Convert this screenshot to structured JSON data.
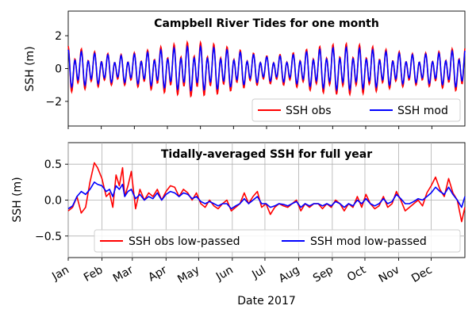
{
  "chart_data": [
    {
      "type": "line",
      "title": "Campbell River Tides for one month",
      "ylabel": "SSH (m)",
      "ylim": [
        -3.5,
        3.5
      ],
      "yticks": [
        -2,
        0,
        2
      ],
      "grid": false,
      "legend": "lower-right",
      "x_tide_period_days": 0.5175,
      "series": [
        {
          "name": "SSH obs",
          "color": "#ff0000",
          "amplitude_envelope": [
            1.35,
            1.05,
            0.85,
            1.05,
            1.4,
            1.6,
            1.45,
            1.1,
            0.8,
            0.95,
            1.3,
            1.5,
            1.4,
            1.1,
            0.9,
            1.05,
            1.35
          ],
          "mean_offset": -0.1
        },
        {
          "name": "SSH mod",
          "color": "#0000ff",
          "amplitude_envelope": [
            1.1,
            0.9,
            0.75,
            0.9,
            1.15,
            1.3,
            1.2,
            0.95,
            0.7,
            0.8,
            1.1,
            1.25,
            1.15,
            0.95,
            0.8,
            0.9,
            1.15
          ],
          "mean_offset": -0.05
        }
      ]
    },
    {
      "type": "line",
      "title": "Tidally-averaged SSH for full year",
      "ylabel": "SSH (m)",
      "xlabel": "Date 2017",
      "ylim": [
        -0.8,
        0.8
      ],
      "yticks": [
        -0.5,
        0.0,
        0.5
      ],
      "ytick_labels": [
        "−0.5",
        "0.0",
        "0.5"
      ],
      "x_categories": [
        "Jan",
        "Feb",
        "Mar",
        "Apr",
        "May",
        "Jun",
        "Jul",
        "Aug",
        "Sep",
        "Oct",
        "Nov",
        "Dec"
      ],
      "xlim_days": [
        0,
        365
      ],
      "grid": true,
      "legend": "lower-right",
      "series": [
        {
          "name": "SSH obs low-passed",
          "color": "#ff0000",
          "x_days": [
            0,
            4,
            8,
            12,
            16,
            20,
            24,
            27,
            31,
            35,
            38,
            41,
            44,
            47,
            50,
            52,
            55,
            58,
            62,
            66,
            70,
            74,
            78,
            82,
            86,
            90,
            94,
            98,
            102,
            106,
            110,
            114,
            118,
            122,
            126,
            130,
            134,
            138,
            142,
            146,
            150,
            154,
            158,
            162,
            166,
            170,
            174,
            178,
            182,
            186,
            190,
            194,
            198,
            202,
            206,
            210,
            214,
            218,
            222,
            226,
            230,
            234,
            238,
            242,
            246,
            250,
            254,
            258,
            262,
            266,
            270,
            274,
            278,
            282,
            286,
            290,
            294,
            298,
            302,
            306,
            310,
            314,
            318,
            322,
            326,
            330,
            334,
            338,
            342,
            346,
            350,
            354,
            358,
            362,
            365
          ],
          "values": [
            -0.15,
            -0.1,
            0.05,
            -0.18,
            -0.1,
            0.25,
            0.52,
            0.45,
            0.3,
            0.05,
            0.1,
            -0.1,
            0.35,
            0.2,
            0.45,
            0.05,
            0.2,
            0.4,
            -0.12,
            0.15,
            0.0,
            0.1,
            0.05,
            0.15,
            0.0,
            0.12,
            0.2,
            0.18,
            0.05,
            0.15,
            0.1,
            0.0,
            0.1,
            -0.05,
            -0.1,
            0.0,
            -0.08,
            -0.12,
            -0.05,
            0.0,
            -0.15,
            -0.1,
            -0.05,
            0.1,
            -0.05,
            0.05,
            0.12,
            -0.1,
            -0.05,
            -0.2,
            -0.1,
            -0.05,
            -0.08,
            -0.1,
            -0.05,
            0.0,
            -0.15,
            -0.05,
            -0.1,
            -0.05,
            -0.05,
            -0.12,
            -0.05,
            -0.1,
            0.0,
            -0.05,
            -0.15,
            -0.05,
            -0.1,
            0.05,
            -0.1,
            0.08,
            -0.05,
            -0.12,
            -0.08,
            0.05,
            -0.1,
            -0.05,
            0.12,
            0.0,
            -0.15,
            -0.1,
            -0.05,
            0.0,
            -0.08,
            0.1,
            0.2,
            0.32,
            0.15,
            0.05,
            0.3,
            0.1,
            0.0,
            -0.3,
            -0.1
          ]
        },
        {
          "name": "SSH mod low-passed",
          "color": "#0000ff",
          "x_days": [
            0,
            4,
            8,
            12,
            16,
            20,
            24,
            27,
            31,
            35,
            38,
            41,
            44,
            47,
            50,
            52,
            55,
            58,
            62,
            66,
            70,
            74,
            78,
            82,
            86,
            90,
            94,
            98,
            102,
            106,
            110,
            114,
            118,
            122,
            126,
            130,
            134,
            138,
            142,
            146,
            150,
            154,
            158,
            162,
            166,
            170,
            174,
            178,
            182,
            186,
            190,
            194,
            198,
            202,
            206,
            210,
            214,
            218,
            222,
            226,
            230,
            234,
            238,
            242,
            246,
            250,
            254,
            258,
            262,
            266,
            270,
            274,
            278,
            282,
            286,
            290,
            294,
            298,
            302,
            306,
            310,
            314,
            318,
            322,
            326,
            330,
            334,
            338,
            342,
            346,
            350,
            354,
            358,
            362,
            365
          ],
          "values": [
            -0.12,
            -0.08,
            0.05,
            0.12,
            0.08,
            0.15,
            0.25,
            0.22,
            0.2,
            0.12,
            0.15,
            0.05,
            0.2,
            0.15,
            0.22,
            0.05,
            0.12,
            0.15,
            0.02,
            0.08,
            0.0,
            0.05,
            0.02,
            0.1,
            0.0,
            0.08,
            0.12,
            0.1,
            0.05,
            0.1,
            0.08,
            0.02,
            0.05,
            -0.02,
            -0.05,
            -0.02,
            -0.05,
            -0.08,
            -0.05,
            -0.05,
            -0.12,
            -0.08,
            -0.05,
            0.02,
            -0.05,
            0.0,
            0.05,
            -0.05,
            -0.05,
            -0.1,
            -0.08,
            -0.05,
            -0.06,
            -0.08,
            -0.05,
            -0.02,
            -0.1,
            -0.05,
            -0.08,
            -0.05,
            -0.05,
            -0.08,
            -0.05,
            -0.08,
            -0.02,
            -0.05,
            -0.1,
            -0.05,
            -0.08,
            0.0,
            -0.05,
            0.02,
            -0.05,
            -0.08,
            -0.05,
            0.02,
            -0.05,
            -0.02,
            0.08,
            0.02,
            -0.05,
            -0.05,
            -0.02,
            0.02,
            0.0,
            0.05,
            0.1,
            0.18,
            0.12,
            0.08,
            0.18,
            0.08,
            0.0,
            -0.1,
            0.05
          ]
        }
      ]
    }
  ]
}
